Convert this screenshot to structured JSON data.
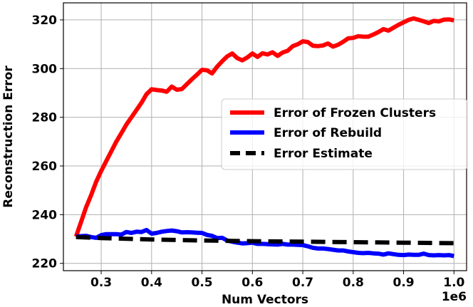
{
  "chart_data": {
    "type": "line",
    "title": "",
    "xlabel": "Num Vectors",
    "ylabel": "Reconstruction Error",
    "x_offset_text": "1e6",
    "xlim": [
      0.225,
      1.025
    ],
    "ylim": [
      217,
      327
    ],
    "xticks": [
      0.3,
      0.4,
      0.5,
      0.6,
      0.7,
      0.8,
      0.9,
      1.0
    ],
    "xtick_labels": [
      "0.3",
      "0.4",
      "0.5",
      "0.6",
      "0.7",
      "0.8",
      "0.9",
      "1.0"
    ],
    "yticks": [
      220,
      240,
      260,
      280,
      300,
      320
    ],
    "ytick_labels": [
      "220",
      "240",
      "260",
      "280",
      "300",
      "320"
    ],
    "grid": true,
    "legend_position": "center-right",
    "series": [
      {
        "name": "Error of Frozen Clusters",
        "color": "#ff0000",
        "style": "solid",
        "x": [
          0.25,
          0.26,
          0.27,
          0.28,
          0.29,
          0.3,
          0.31,
          0.32,
          0.33,
          0.34,
          0.35,
          0.36,
          0.37,
          0.38,
          0.39,
          0.4,
          0.41,
          0.42,
          0.43,
          0.44,
          0.45,
          0.46,
          0.47,
          0.48,
          0.49,
          0.5,
          0.51,
          0.52,
          0.53,
          0.54,
          0.55,
          0.56,
          0.57,
          0.58,
          0.59,
          0.6,
          0.61,
          0.62,
          0.63,
          0.64,
          0.65,
          0.66,
          0.67,
          0.68,
          0.69,
          0.7,
          0.71,
          0.72,
          0.73,
          0.74,
          0.75,
          0.76,
          0.77,
          0.78,
          0.79,
          0.8,
          0.81,
          0.82,
          0.83,
          0.84,
          0.85,
          0.86,
          0.87,
          0.88,
          0.89,
          0.9,
          0.91,
          0.92,
          0.93,
          0.94,
          0.95,
          0.96,
          0.97,
          0.98,
          0.99,
          1.0
        ],
        "y": [
          231,
          237,
          243,
          248,
          253.5,
          258,
          262,
          266,
          270,
          273.5,
          277,
          280,
          283,
          286,
          289.5,
          291.5,
          291.2,
          291,
          290.5,
          292.6,
          291.3,
          291.6,
          293.6,
          295.6,
          297.5,
          299.5,
          299.3,
          298,
          300.8,
          303,
          305,
          306.2,
          304.3,
          303.4,
          304.6,
          306.2,
          304.8,
          306.3,
          305.8,
          306.7,
          305.2,
          306.6,
          307.3,
          309.2,
          310,
          311.2,
          310.9,
          309.4,
          309.2,
          309.5,
          310.3,
          309,
          309.8,
          311,
          312.4,
          312.6,
          313.3,
          313.1,
          313.1,
          314,
          315,
          316.2,
          315.6,
          316.8,
          318,
          319,
          320,
          320.6,
          320,
          319.4,
          318.7,
          319.6,
          319.4,
          320.1,
          320.2,
          319.8
        ]
      },
      {
        "name": "Error of Rebuild",
        "color": "#0000ff",
        "style": "solid",
        "x": [
          0.25,
          0.26,
          0.27,
          0.28,
          0.29,
          0.3,
          0.31,
          0.32,
          0.33,
          0.34,
          0.35,
          0.36,
          0.37,
          0.38,
          0.39,
          0.4,
          0.41,
          0.42,
          0.43,
          0.44,
          0.45,
          0.46,
          0.47,
          0.48,
          0.49,
          0.5,
          0.51,
          0.52,
          0.53,
          0.54,
          0.55,
          0.56,
          0.57,
          0.58,
          0.59,
          0.6,
          0.61,
          0.62,
          0.63,
          0.64,
          0.65,
          0.66,
          0.67,
          0.68,
          0.69,
          0.7,
          0.71,
          0.72,
          0.73,
          0.74,
          0.75,
          0.76,
          0.77,
          0.78,
          0.79,
          0.8,
          0.81,
          0.82,
          0.83,
          0.84,
          0.85,
          0.86,
          0.87,
          0.88,
          0.89,
          0.9,
          0.91,
          0.92,
          0.93,
          0.94,
          0.95,
          0.96,
          0.97,
          0.98,
          0.99,
          1.0
        ],
        "y": [
          231,
          231.2,
          231.3,
          230.8,
          230.5,
          231.6,
          232,
          232,
          232,
          231.8,
          232.9,
          232.5,
          233,
          232.9,
          233.7,
          232.2,
          232.5,
          233,
          233.3,
          233.5,
          233.2,
          232.7,
          232.8,
          232.7,
          232.6,
          232.5,
          231.7,
          231.3,
          230.4,
          230.5,
          229.4,
          228.9,
          228.5,
          228.2,
          228.3,
          228.5,
          228,
          228,
          227.9,
          227.8,
          227.7,
          228,
          227.7,
          227.7,
          227.6,
          227.5,
          227,
          226.4,
          226.1,
          226.1,
          225.9,
          225.6,
          225.3,
          225.3,
          224.9,
          224.6,
          224.3,
          224.2,
          224.3,
          224.1,
          224,
          223.6,
          224.1,
          223.8,
          223.5,
          223.4,
          223.6,
          223.5,
          223.5,
          224,
          223.4,
          223.3,
          223.4,
          223.3,
          223.4,
          223
        ]
      },
      {
        "name": "Error Estimate",
        "color": "#000000",
        "style": "dashed",
        "x": [
          0.25,
          0.3,
          0.4,
          0.5,
          0.6,
          0.7,
          0.8,
          0.9,
          1.0
        ],
        "y": [
          230.8,
          230.4,
          229.8,
          229.4,
          229.1,
          228.9,
          228.7,
          228.5,
          228.3
        ]
      }
    ]
  }
}
